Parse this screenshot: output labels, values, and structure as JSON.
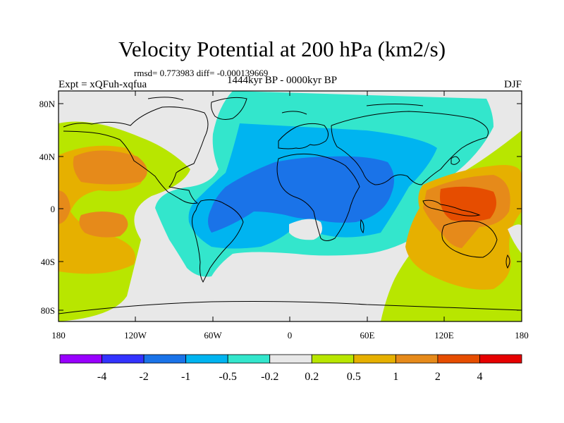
{
  "title": "Velocity Potential at 200 hPa (km2/s)",
  "stats": "rmsd= 0.773983  diff= -0.000139669",
  "experiment": "Expt = xQFuh-xqfua",
  "period": "1444kyr BP - 0000kyr BP",
  "season": "DJF",
  "map_axes": {
    "y_tick_labels": [
      "80N",
      "40N",
      "0",
      "40S",
      "80S"
    ],
    "x_tick_labels": [
      "180",
      "120W",
      "60W",
      "0",
      "60E",
      "120E",
      "180"
    ]
  },
  "colorbar": {
    "colors": [
      "#9900ff",
      "#3333ff",
      "#1a73e8",
      "#00b4f0",
      "#33e6cc",
      "#e8e8e8",
      "#b8e600",
      "#e6b000",
      "#e68a1a",
      "#e64d00",
      "#e60000"
    ],
    "labels": [
      "-4",
      "-2",
      "-1",
      "-0.5",
      "-0.2",
      "0.2",
      "0.5",
      "1",
      "2",
      "4"
    ]
  },
  "palette": {
    "ocean_background": "#e8e8e8",
    "coastline": "#000000"
  }
}
